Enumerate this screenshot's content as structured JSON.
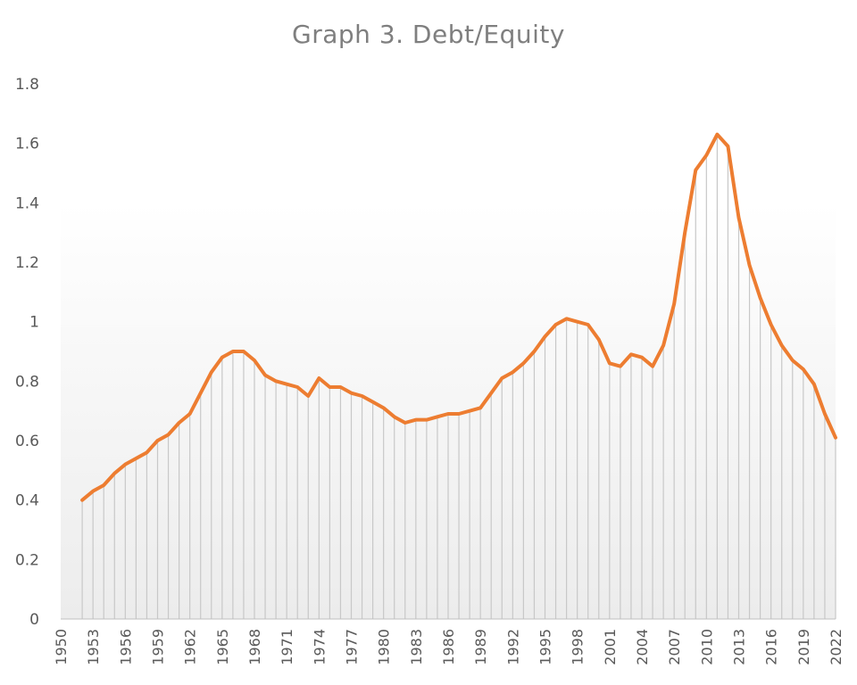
{
  "chart_data": {
    "type": "line",
    "title": "Graph 3. Debt/Equity",
    "xlabel": "",
    "ylabel": "",
    "xlim": [
      1950,
      2022
    ],
    "ylim": [
      0,
      1.8
    ],
    "y_ticks": [
      0,
      0.2,
      0.4,
      0.6,
      0.8,
      1,
      1.2,
      1.4,
      1.6,
      1.8
    ],
    "x_tick_labels": [
      "1950",
      "1953",
      "1956",
      "1959",
      "1962",
      "1965",
      "1968",
      "1971",
      "1974",
      "1977",
      "1980",
      "1983",
      "1986",
      "1989",
      "1992",
      "1995",
      "1998",
      "2001",
      "2004",
      "2007",
      "2010",
      "2013",
      "2016",
      "2019",
      "2022"
    ],
    "grid": false,
    "drop_lines": true,
    "line_color": "#ed7d31",
    "drop_line_color": "#c8c8c8",
    "series": [
      {
        "x": [
          1952,
          1953,
          1954,
          1955,
          1956,
          1957,
          1958,
          1959,
          1960,
          1961,
          1962,
          1963,
          1964,
          1965,
          1966,
          1967,
          1968,
          1969,
          1970,
          1971,
          1972,
          1973,
          1974,
          1975,
          1976,
          1977,
          1978,
          1979,
          1980,
          1981,
          1982,
          1983,
          1984,
          1985,
          1986,
          1987,
          1988,
          1989,
          1990,
          1991,
          1992,
          1993,
          1994,
          1995,
          1996,
          1997,
          1998,
          1999,
          2000,
          2001,
          2002,
          2003,
          2004,
          2005,
          2006,
          2007,
          2008,
          2009,
          2010,
          2011,
          2012,
          2013,
          2014,
          2015,
          2016,
          2017,
          2018,
          2019,
          2020,
          2021,
          2022
        ],
        "values": [
          0.4,
          0.43,
          0.45,
          0.49,
          0.52,
          0.54,
          0.56,
          0.6,
          0.62,
          0.66,
          0.69,
          0.76,
          0.83,
          0.88,
          0.9,
          0.9,
          0.87,
          0.82,
          0.8,
          0.79,
          0.78,
          0.75,
          0.81,
          0.78,
          0.78,
          0.76,
          0.75,
          0.73,
          0.71,
          0.68,
          0.66,
          0.67,
          0.67,
          0.68,
          0.69,
          0.69,
          0.7,
          0.71,
          0.76,
          0.81,
          0.83,
          0.86,
          0.9,
          0.95,
          0.99,
          1.01,
          1.0,
          0.99,
          0.94,
          0.86,
          0.85,
          0.89,
          0.88,
          0.85,
          0.92,
          1.06,
          1.3,
          1.51,
          1.56,
          1.63,
          1.59,
          1.35,
          1.19,
          1.08,
          0.99,
          0.92,
          0.87,
          0.84,
          0.79,
          0.69,
          0.61
        ]
      }
    ]
  }
}
